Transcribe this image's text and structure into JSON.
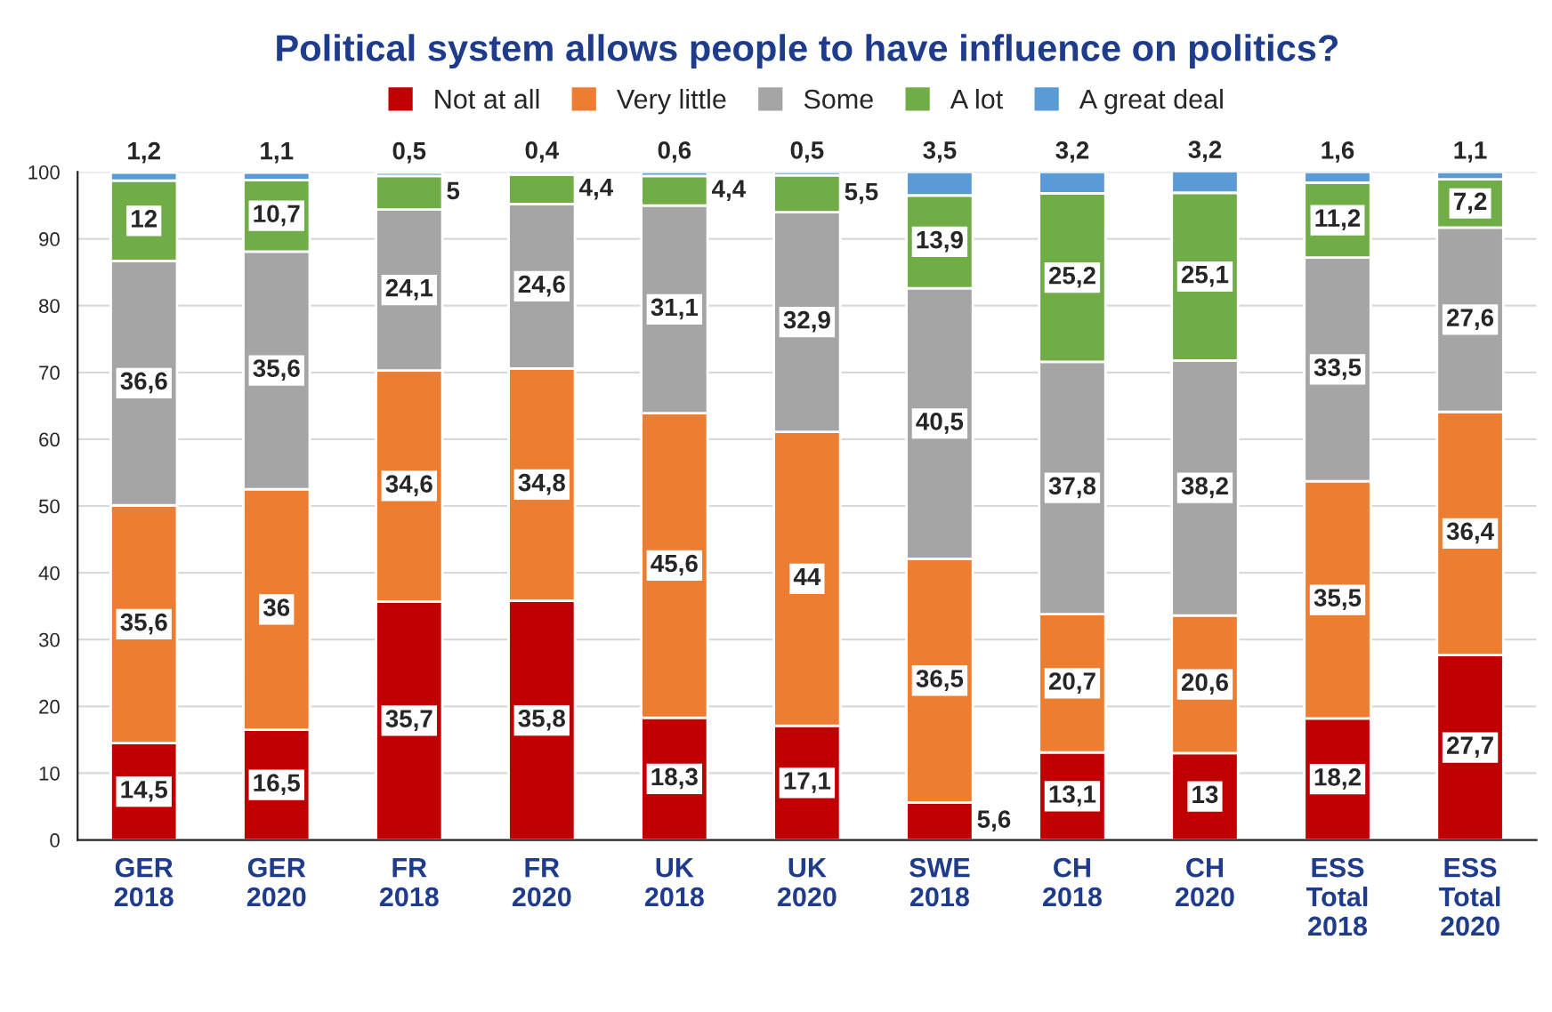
{
  "chart_data": {
    "type": "bar",
    "title": "Political system allows people to have influence on politics?",
    "categories": [
      "GER\n2018",
      "GER\n2020",
      "FR\n2018",
      "FR\n2020",
      "UK\n2018",
      "UK\n2020",
      "SWE\n2018",
      "CH\n2018",
      "CH\n2020",
      "ESS\nTotal\n2018",
      "ESS\nTotal\n2020"
    ],
    "stacked": true,
    "grid": "y",
    "legend": "top",
    "ylim": [
      0,
      100
    ],
    "yticks": [
      0,
      10,
      20,
      30,
      40,
      50,
      60,
      70,
      80,
      90,
      100
    ],
    "series": [
      {
        "name": "Not at all",
        "color": "#c00000",
        "values": [
          14.5,
          16.5,
          35.7,
          35.8,
          18.3,
          17.1,
          5.6,
          13.1,
          13,
          18.2,
          27.7
        ],
        "value_labels": [
          "14,5",
          "16,5",
          "35,7",
          "35,8",
          "18,3",
          "17,1",
          "5,6",
          "13,1",
          "13",
          "18,2",
          "27,7"
        ]
      },
      {
        "name": "Very little",
        "color": "#ed7d31",
        "values": [
          35.6,
          36,
          34.6,
          34.8,
          45.6,
          44,
          36.5,
          20.7,
          20.6,
          35.5,
          36.4
        ],
        "value_labels": [
          "35,6",
          "36",
          "34,6",
          "34,8",
          "45,6",
          "44",
          "36,5",
          "20,7",
          "20,6",
          "35,5",
          "36,4"
        ]
      },
      {
        "name": "Some",
        "color": "#a5a5a5",
        "values": [
          36.6,
          35.6,
          24.1,
          24.6,
          31.1,
          32.9,
          40.5,
          37.8,
          38.2,
          33.5,
          27.6
        ],
        "value_labels": [
          "36,6",
          "35,6",
          "24,1",
          "24,6",
          "31,1",
          "32,9",
          "40,5",
          "37,8",
          "38,2",
          "33,5",
          "27,6"
        ]
      },
      {
        "name": "A lot",
        "color": "#70ad47",
        "values": [
          12,
          10.7,
          5,
          4.4,
          4.4,
          5.5,
          13.9,
          25.2,
          25.1,
          11.2,
          7.2
        ],
        "value_labels": [
          "12",
          "10,7",
          "5",
          "4,4",
          "4,4",
          "5,5",
          "13,9",
          "25,2",
          "25,1",
          "11,2",
          "7,2"
        ]
      },
      {
        "name": "A great deal",
        "color": "#5b9bd5",
        "values": [
          1.2,
          1.1,
          0.5,
          0.4,
          0.6,
          0.5,
          3.5,
          3.2,
          3.2,
          1.6,
          1.1
        ],
        "value_labels": [
          "1,2",
          "1,1",
          "0,5",
          "0,4",
          "0,6",
          "0,5",
          "3,5",
          "3,2",
          "3,2",
          "1,6",
          "1,1"
        ]
      }
    ]
  }
}
